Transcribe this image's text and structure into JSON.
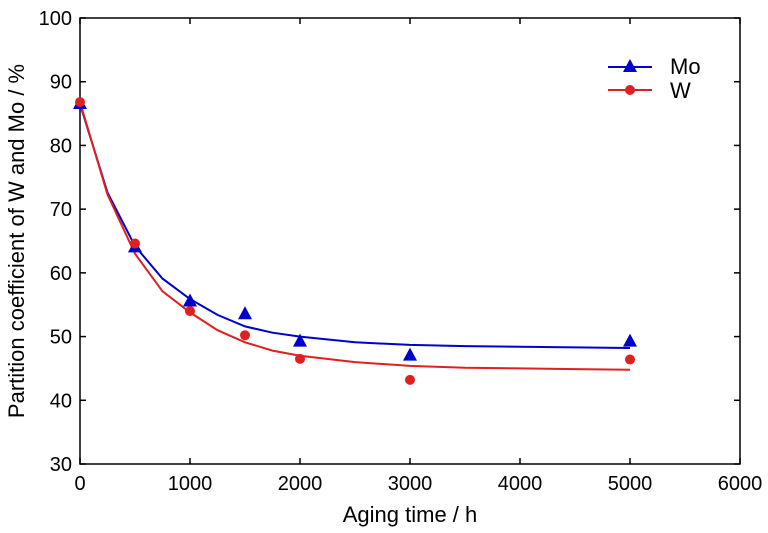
{
  "chart_data": {
    "type": "scatter",
    "xlabel": "Aging time / h",
    "ylabel": "Partition coefficient of W and Mo /  %",
    "xlim": [
      0,
      6000
    ],
    "ylim": [
      30,
      100
    ],
    "xticks": [
      0,
      1000,
      2000,
      3000,
      4000,
      5000,
      6000
    ],
    "yticks": [
      30,
      40,
      50,
      60,
      70,
      80,
      90,
      100
    ],
    "grid": false,
    "legend_position": "top-right",
    "series": [
      {
        "name": "Mo",
        "color": "#0000CC",
        "marker": "triangle",
        "x": [
          0,
          500,
          1000,
          1500,
          2000,
          3000,
          5000
        ],
        "y": [
          86.5,
          64.0,
          55.5,
          53.5,
          49.2,
          47.0,
          49.2
        ],
        "fit_x": [
          0,
          250,
          500,
          750,
          1000,
          1250,
          1500,
          1750,
          2000,
          2500,
          3000,
          3500,
          4000,
          4500,
          5000
        ],
        "fit_y": [
          86.5,
          72.6,
          64.2,
          59.1,
          55.9,
          53.4,
          51.6,
          50.6,
          50.0,
          49.1,
          48.7,
          48.5,
          48.4,
          48.3,
          48.2
        ]
      },
      {
        "name": "W",
        "color": "#E02020",
        "marker": "circle",
        "x": [
          0,
          500,
          1000,
          1500,
          2000,
          3000,
          5000
        ],
        "y": [
          86.8,
          64.6,
          54.0,
          50.2,
          46.5,
          43.2,
          46.4
        ],
        "fit_x": [
          0,
          250,
          500,
          750,
          1000,
          1250,
          1500,
          1750,
          2000,
          2500,
          3000,
          3500,
          4000,
          4500,
          5000
        ],
        "fit_y": [
          86.8,
          72.3,
          63.0,
          57.1,
          53.8,
          51.0,
          49.1,
          47.8,
          47.0,
          46.0,
          45.4,
          45.1,
          45.0,
          44.9,
          44.8
        ]
      }
    ]
  }
}
